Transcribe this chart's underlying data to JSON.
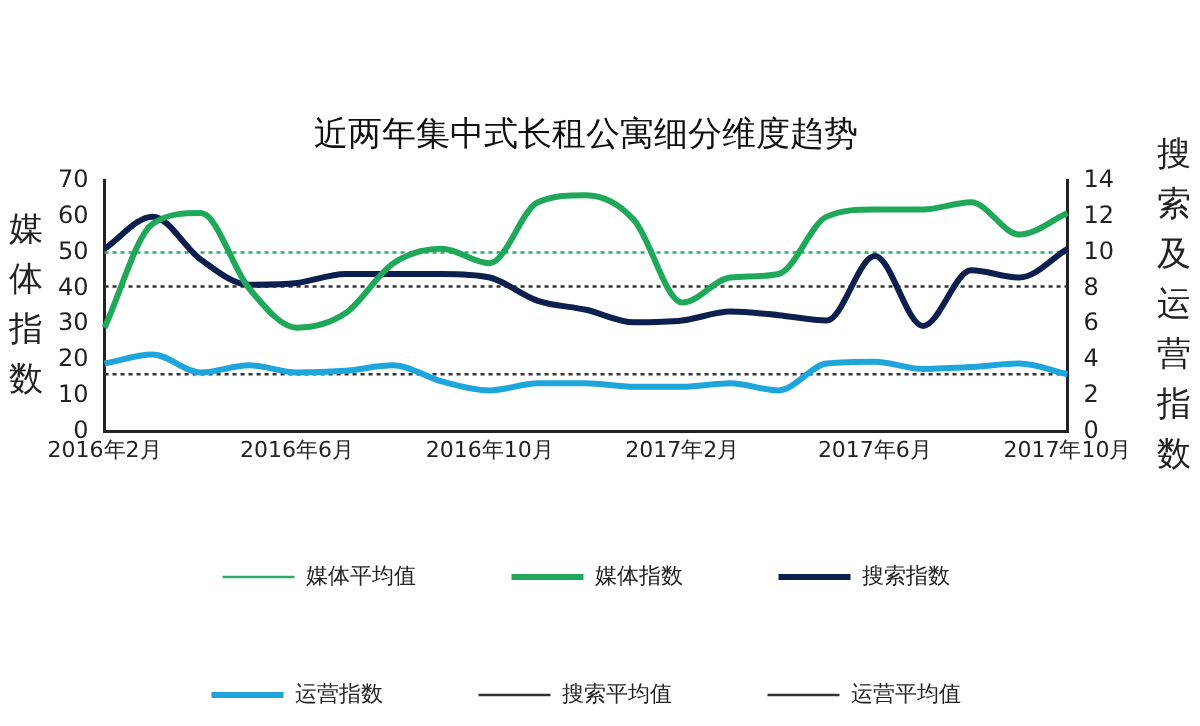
{
  "chart_data": {
    "type": "line",
    "title": "近两年集中式长租公寓细分维度趋势",
    "ylabel": "媒体指数",
    "y2label": "搜索及运营指数",
    "categories": [
      "2016年2月",
      null,
      null,
      null,
      "2016年6月",
      null,
      null,
      null,
      "2016年10月",
      null,
      null,
      null,
      "2017年2月",
      null,
      null,
      null,
      "2017年6月",
      null,
      null,
      null,
      "2017年10月"
    ],
    "series": [
      {
        "name": "媒体平均值",
        "color": "#2eaa6a",
        "line_style": "dotted",
        "values": [
          50,
          50,
          50,
          50,
          50,
          50,
          50,
          50,
          50,
          50,
          50,
          50,
          50,
          50,
          50,
          50,
          50,
          50,
          50,
          50,
          50
        ]
      },
      {
        "name": "媒体指数",
        "color": "#1fa85a",
        "values": [
          29,
          58,
          61,
          40,
          29,
          33,
          47,
          51,
          47,
          64,
          66,
          59,
          36,
          43,
          44,
          60,
          62,
          62,
          64,
          55,
          61
        ]
      },
      {
        "name": "搜索指数",
        "color": "#0d1f4f",
        "axis": "y2",
        "values": [
          10.2,
          12,
          9.6,
          8.2,
          8.3,
          8.8,
          8.8,
          8.8,
          8.6,
          7.3,
          6.8,
          6.1,
          6.2,
          6.7,
          6.5,
          6.2,
          9.8,
          5.9,
          9.0,
          8.6,
          10.2
        ]
      },
      {
        "name": "运营指数",
        "color": "#1ea6dc",
        "axis": "y2",
        "values": [
          3.8,
          4.3,
          3.3,
          3.7,
          3.3,
          3.4,
          3.7,
          2.8,
          2.3,
          2.7,
          2.7,
          2.5,
          2.5,
          2.7,
          2.3,
          3.8,
          3.9,
          3.5,
          3.6,
          3.8,
          3.2
        ]
      },
      {
        "name": "搜索平均值",
        "color": "#333333",
        "axis": "y2",
        "line_style": "dotted",
        "values": [
          8.1,
          8.1,
          8.1,
          8.1,
          8.1,
          8.1,
          8.1,
          8.1,
          8.1,
          8.1,
          8.1,
          8.1,
          8.1,
          8.1,
          8.1,
          8.1,
          8.1,
          8.1,
          8.1,
          8.1,
          8.1
        ]
      },
      {
        "name": "运营平均值",
        "color": "#333333",
        "axis": "y2",
        "line_style": "dotted",
        "values": [
          3.2,
          3.2,
          3.2,
          3.2,
          3.2,
          3.2,
          3.2,
          3.2,
          3.2,
          3.2,
          3.2,
          3.2,
          3.2,
          3.2,
          3.2,
          3.2,
          3.2,
          3.2,
          3.2,
          3.2,
          3.2
        ]
      }
    ],
    "ylim": [
      0,
      70
    ],
    "yticks": [
      0,
      10,
      20,
      30,
      40,
      50,
      60,
      70
    ],
    "y2lim": [
      0,
      14
    ],
    "y2ticks": [
      0,
      2,
      4,
      6,
      8,
      10,
      12,
      14
    ],
    "grid": false,
    "legend": "bottom",
    "marker": "none",
    "line_style": "solid"
  }
}
